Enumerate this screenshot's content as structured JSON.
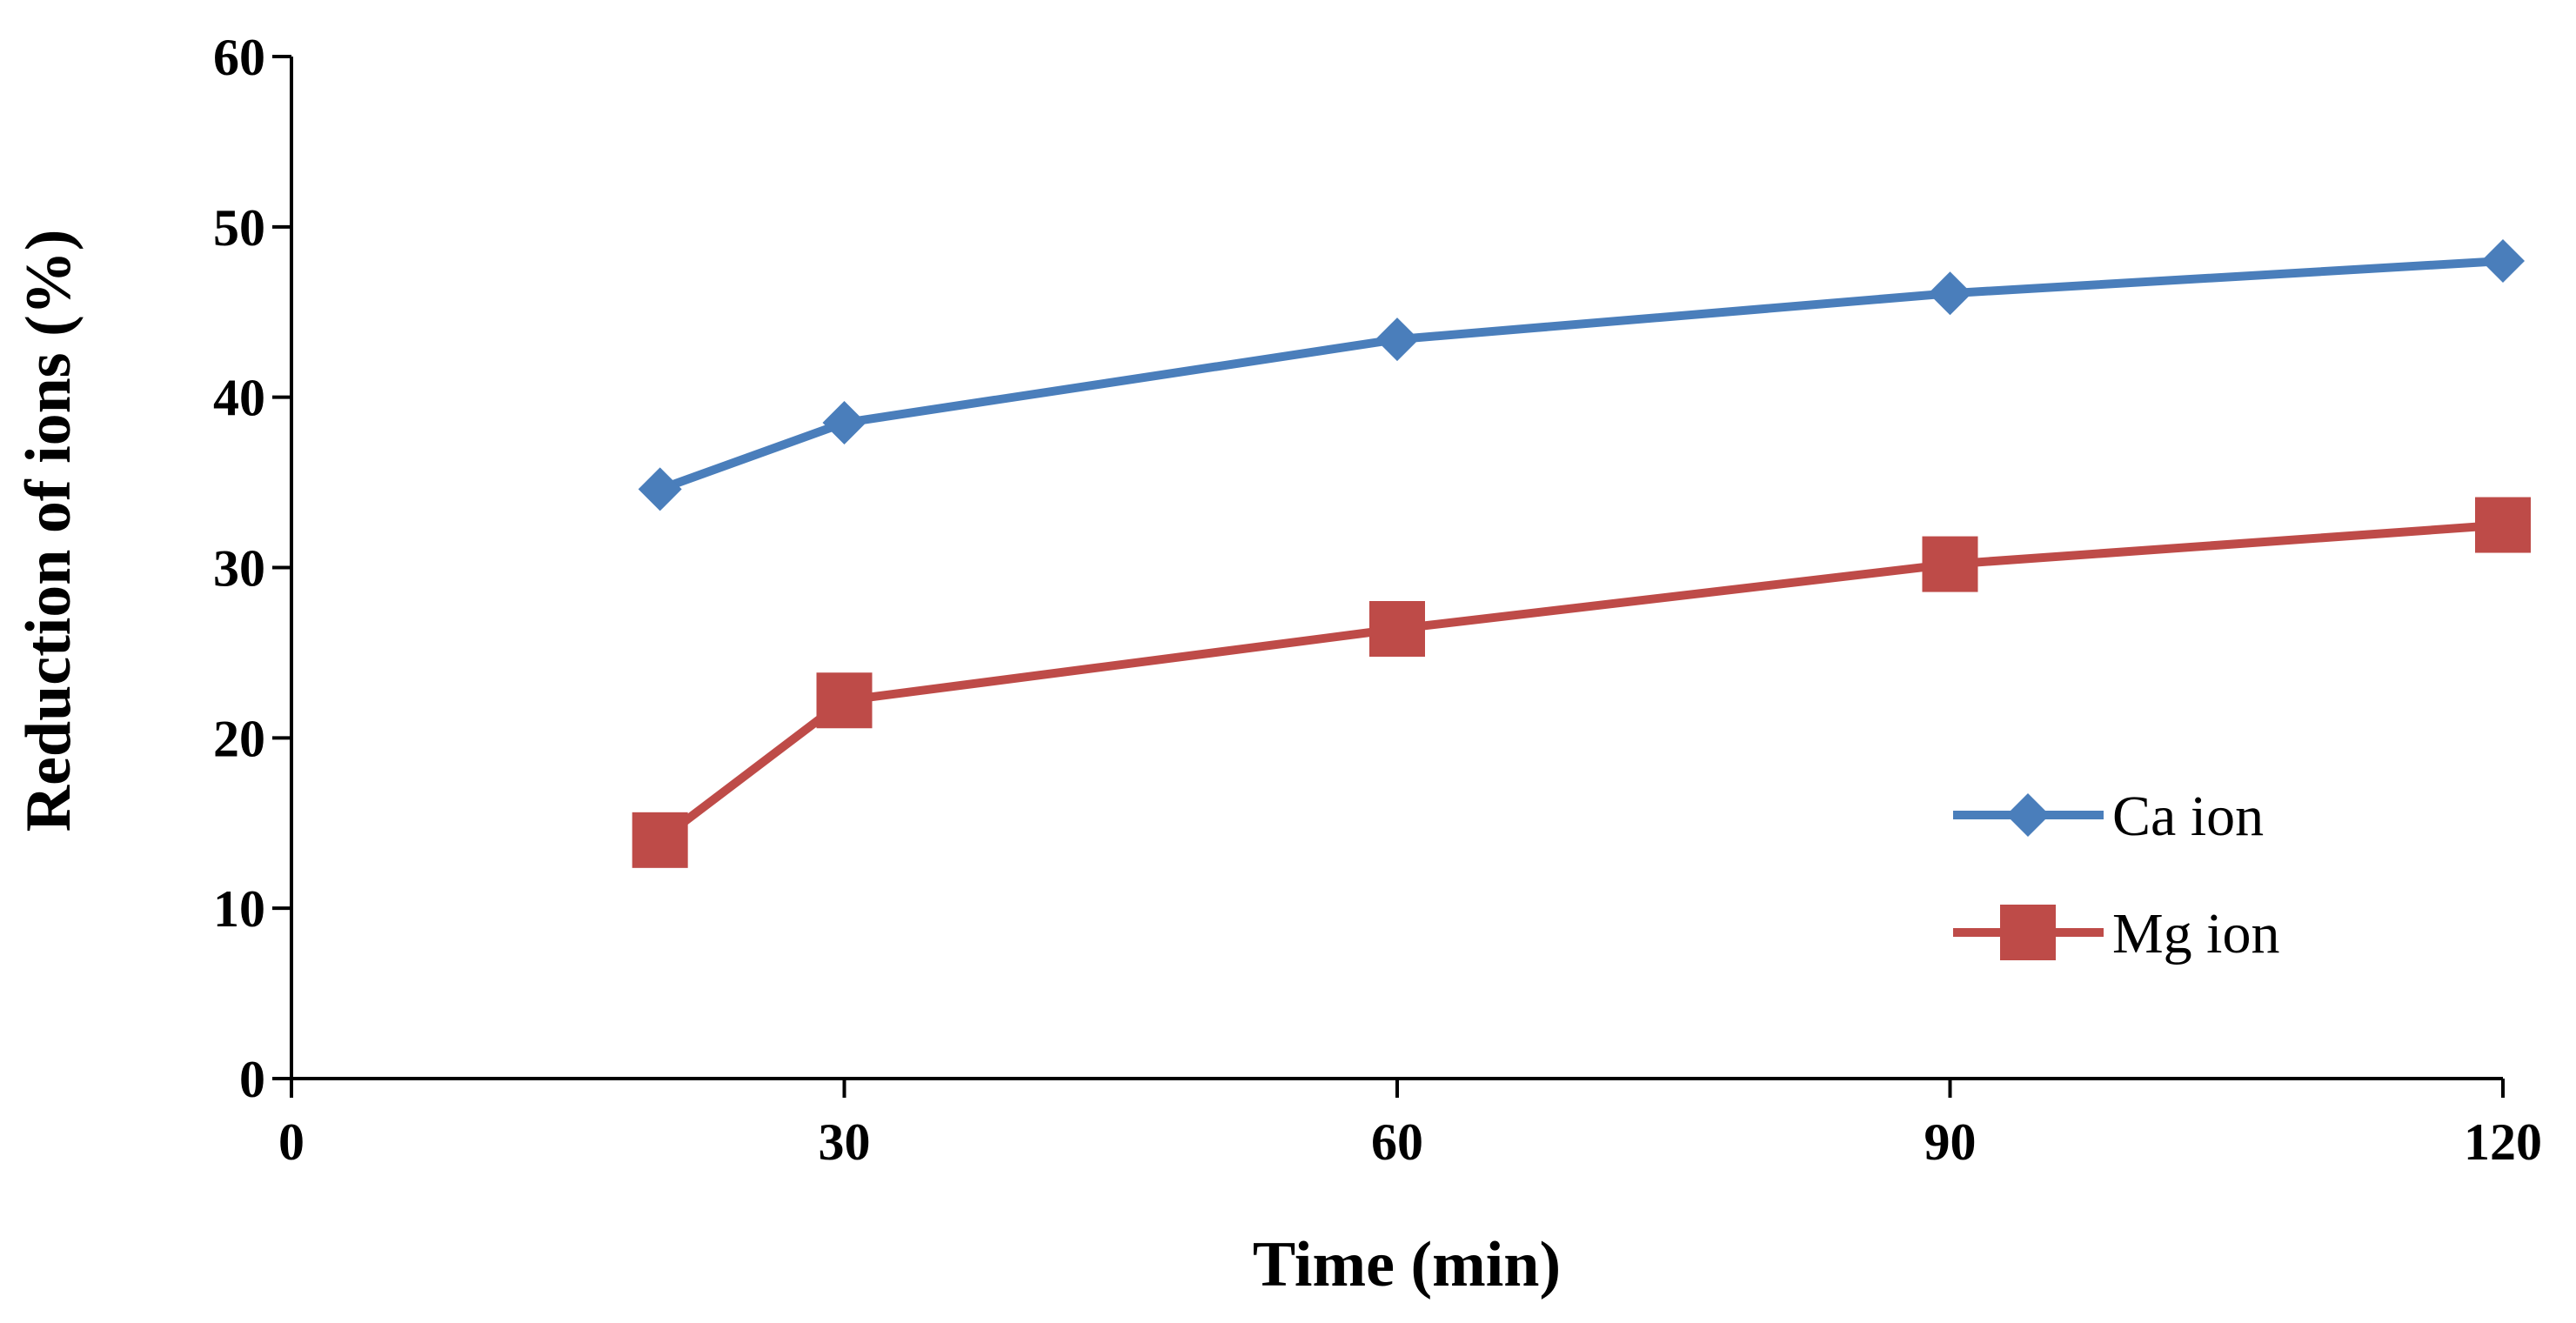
{
  "chart_data": {
    "type": "line",
    "title": "",
    "xlabel": "Time (min)",
    "ylabel": "Reduction of ions (%)",
    "xlim": [
      0,
      120
    ],
    "ylim": [
      0,
      60
    ],
    "xticks": [
      0,
      30,
      60,
      90,
      120
    ],
    "yticks": [
      0,
      10,
      20,
      30,
      40,
      50,
      60
    ],
    "grid": false,
    "legend_position": "right",
    "series": [
      {
        "name": "Ca ion",
        "color": "#4a7ebb",
        "marker": "diamond",
        "x": [
          20,
          30,
          60,
          90,
          120
        ],
        "y": [
          34.6,
          38.5,
          43.4,
          46.1,
          48.0
        ]
      },
      {
        "name": "Mg ion",
        "color": "#be4b48",
        "marker": "square",
        "x": [
          20,
          30,
          60,
          90,
          120
        ],
        "y": [
          14.0,
          22.2,
          26.4,
          30.2,
          32.5
        ]
      }
    ]
  }
}
